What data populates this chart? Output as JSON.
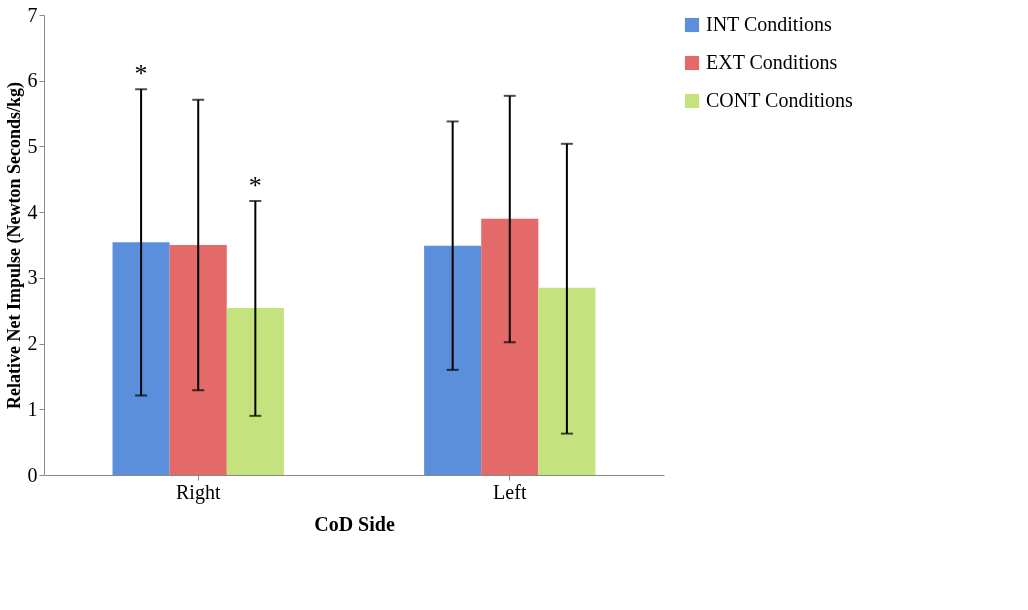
{
  "chart_data": {
    "type": "bar",
    "xlabel": "CoD Side",
    "ylabel": "Relative Net Impulse (Newton Seconds/kg)",
    "categories": [
      "Right",
      "Left"
    ],
    "series": [
      {
        "name": "INT Conditions",
        "color": "#5b8fdb",
        "values": [
          3.54,
          3.49
        ],
        "errors": [
          [
            1.21,
            5.87
          ],
          [
            1.6,
            5.38
          ]
        ]
      },
      {
        "name": "EXT Conditions",
        "color": "#e36a68",
        "values": [
          3.5,
          3.9
        ],
        "errors": [
          [
            1.29,
            5.71
          ],
          [
            2.02,
            5.77
          ]
        ]
      },
      {
        "name": "CONT Conditions",
        "color": "#c4e37f",
        "values": [
          2.54,
          2.85
        ],
        "errors": [
          [
            0.9,
            4.17
          ],
          [
            0.63,
            5.04
          ]
        ]
      }
    ],
    "ylim": [
      0,
      7
    ],
    "yticks": [
      0,
      1,
      2,
      3,
      4,
      5,
      6,
      7
    ],
    "grid": false,
    "legend": "right",
    "annotations": [
      {
        "text": "*",
        "y": 5.87
      },
      {
        "text": "*",
        "y": 4.17
      }
    ]
  }
}
